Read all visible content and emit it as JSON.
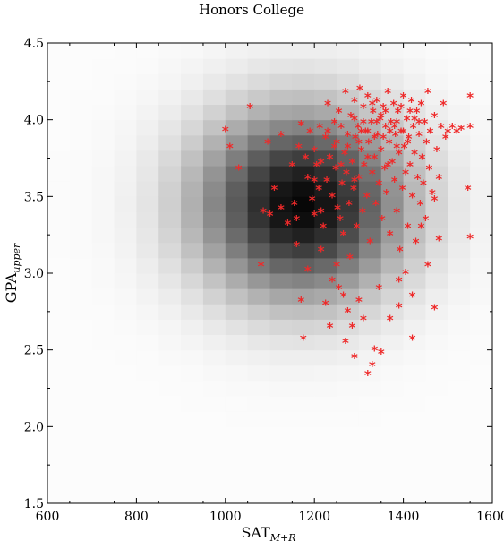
{
  "chart_data": {
    "type": "scatter",
    "title": "Honors College",
    "xlabel": {
      "main": "SAT",
      "sub": "M+R"
    },
    "ylabel": {
      "main": "GPA",
      "sub": "upper"
    },
    "xlim": [
      600,
      1600
    ],
    "ylim": [
      1.5,
      4.5
    ],
    "x_ticks": [
      "600",
      "800",
      "1000",
      "1200",
      "1400",
      "1600"
    ],
    "y_ticks": [
      "1.5",
      "2.0",
      "2.5",
      "3.0",
      "3.5",
      "4.0",
      "4.5"
    ],
    "x_tick_values": [
      600,
      800,
      1000,
      1200,
      1400,
      1600
    ],
    "y_tick_values": [
      1.5,
      2.0,
      2.5,
      3.0,
      3.5,
      4.0,
      4.5
    ],
    "grid": false,
    "legend": "none",
    "marker_color": "#ee2a2a",
    "marker_symbol": "*",
    "background_density": {
      "description": "grayscale 2D density (darker = higher)",
      "x_start": 600,
      "x_step": 50,
      "x_bins": 20,
      "y_start": 1.5,
      "y_step": 0.1,
      "y_bins": 30,
      "center_x": 1170,
      "center_y": 3.45,
      "sigma_x": 160,
      "sigma_y": 0.42
    },
    "points": [
      [
        1055,
        4.08
      ],
      [
        1000,
        3.93
      ],
      [
        1010,
        3.82
      ],
      [
        1030,
        3.68
      ],
      [
        1095,
        3.85
      ],
      [
        1110,
        3.55
      ],
      [
        1125,
        3.9
      ],
      [
        1150,
        3.7
      ],
      [
        1155,
        3.45
      ],
      [
        1160,
        3.35
      ],
      [
        1165,
        3.82
      ],
      [
        1170,
        3.97
      ],
      [
        1180,
        3.75
      ],
      [
        1185,
        3.62
      ],
      [
        1190,
        3.92
      ],
      [
        1195,
        3.48
      ],
      [
        1200,
        3.8
      ],
      [
        1205,
        3.7
      ],
      [
        1210,
        3.55
      ],
      [
        1212,
        3.95
      ],
      [
        1215,
        3.4
      ],
      [
        1220,
        3.3
      ],
      [
        1225,
        3.88
      ],
      [
        1228,
        3.6
      ],
      [
        1230,
        4.1
      ],
      [
        1235,
        3.75
      ],
      [
        1240,
        3.5
      ],
      [
        1245,
        3.98
      ],
      [
        1248,
        3.68
      ],
      [
        1250,
        3.85
      ],
      [
        1252,
        3.42
      ],
      [
        1255,
        4.05
      ],
      [
        1258,
        3.35
      ],
      [
        1260,
        3.95
      ],
      [
        1262,
        3.58
      ],
      [
        1265,
        3.25
      ],
      [
        1268,
        3.78
      ],
      [
        1270,
        4.18
      ],
      [
        1272,
        3.65
      ],
      [
        1275,
        3.9
      ],
      [
        1278,
        3.45
      ],
      [
        1280,
        3.1
      ],
      [
        1282,
        4.02
      ],
      [
        1285,
        3.72
      ],
      [
        1288,
        3.55
      ],
      [
        1290,
        4.12
      ],
      [
        1292,
        3.88
      ],
      [
        1295,
        3.3
      ],
      [
        1298,
        3.95
      ],
      [
        1300,
        3.62
      ],
      [
        1302,
        4.2
      ],
      [
        1305,
        3.8
      ],
      [
        1308,
        3.4
      ],
      [
        1310,
        4.08
      ],
      [
        1312,
        3.7
      ],
      [
        1315,
        3.92
      ],
      [
        1318,
        3.5
      ],
      [
        1320,
        4.15
      ],
      [
        1322,
        3.85
      ],
      [
        1325,
        3.2
      ],
      [
        1328,
        3.98
      ],
      [
        1330,
        3.65
      ],
      [
        1332,
        4.05
      ],
      [
        1335,
        3.75
      ],
      [
        1338,
        3.45
      ],
      [
        1340,
        4.12
      ],
      [
        1342,
        3.9
      ],
      [
        1345,
        3.58
      ],
      [
        1348,
        4.0
      ],
      [
        1350,
        3.8
      ],
      [
        1352,
        3.35
      ],
      [
        1355,
        4.08
      ],
      [
        1358,
        3.68
      ],
      [
        1360,
        3.95
      ],
      [
        1362,
        3.52
      ],
      [
        1365,
        4.18
      ],
      [
        1368,
        3.85
      ],
      [
        1370,
        3.25
      ],
      [
        1372,
        3.98
      ],
      [
        1375,
        3.72
      ],
      [
        1378,
        4.1
      ],
      [
        1380,
        3.6
      ],
      [
        1382,
        3.9
      ],
      [
        1385,
        3.4
      ],
      [
        1388,
        4.05
      ],
      [
        1390,
        3.78
      ],
      [
        1392,
        3.15
      ],
      [
        1395,
        3.92
      ],
      [
        1398,
        3.55
      ],
      [
        1400,
        4.15
      ],
      [
        1402,
        3.82
      ],
      [
        1405,
        3.65
      ],
      [
        1408,
        4.0
      ],
      [
        1410,
        3.3
      ],
      [
        1412,
        3.88
      ],
      [
        1415,
        3.7
      ],
      [
        1418,
        4.12
      ],
      [
        1420,
        3.5
      ],
      [
        1422,
        3.95
      ],
      [
        1425,
        3.78
      ],
      [
        1428,
        3.2
      ],
      [
        1430,
        4.05
      ],
      [
        1432,
        3.62
      ],
      [
        1435,
        3.9
      ],
      [
        1438,
        3.45
      ],
      [
        1440,
        4.1
      ],
      [
        1442,
        3.75
      ],
      [
        1445,
        3.58
      ],
      [
        1448,
        3.98
      ],
      [
        1450,
        3.35
      ],
      [
        1452,
        3.85
      ],
      [
        1455,
        4.18
      ],
      [
        1458,
        3.68
      ],
      [
        1460,
        3.92
      ],
      [
        1465,
        3.52
      ],
      [
        1470,
        4.02
      ],
      [
        1475,
        3.8
      ],
      [
        1480,
        3.62
      ],
      [
        1485,
        3.95
      ],
      [
        1490,
        4.1
      ],
      [
        1495,
        3.88
      ],
      [
        1500,
        3.92
      ],
      [
        1510,
        3.95
      ],
      [
        1520,
        3.92
      ],
      [
        1530,
        3.94
      ],
      [
        1545,
        3.55
      ],
      [
        1550,
        4.15
      ],
      [
        1550,
        3.95
      ],
      [
        1550,
        3.23
      ],
      [
        1480,
        3.22
      ],
      [
        1470,
        3.48
      ],
      [
        1455,
        3.05
      ],
      [
        1440,
        3.3
      ],
      [
        1420,
        2.85
      ],
      [
        1405,
        3.0
      ],
      [
        1390,
        2.95
      ],
      [
        1370,
        2.7
      ],
      [
        1345,
        2.9
      ],
      [
        1335,
        2.5
      ],
      [
        1320,
        2.34
      ],
      [
        1300,
        2.82
      ],
      [
        1285,
        2.65
      ],
      [
        1275,
        2.75
      ],
      [
        1270,
        2.55
      ],
      [
        1265,
        2.85
      ],
      [
        1250,
        3.05
      ],
      [
        1240,
        2.95
      ],
      [
        1225,
        2.8
      ],
      [
        1215,
        3.15
      ],
      [
        1200,
        3.38
      ],
      [
        1185,
        3.02
      ],
      [
        1170,
        2.82
      ],
      [
        1175,
        2.57
      ],
      [
        1160,
        3.18
      ],
      [
        1140,
        3.32
      ],
      [
        1125,
        3.42
      ],
      [
        1100,
        3.38
      ],
      [
        1080,
        3.05
      ],
      [
        1085,
        3.4
      ],
      [
        1235,
        2.65
      ],
      [
        1255,
        2.9
      ],
      [
        1290,
        2.45
      ],
      [
        1310,
        2.7
      ],
      [
        1330,
        2.4
      ],
      [
        1350,
        2.48
      ],
      [
        1390,
        2.78
      ],
      [
        1420,
        2.57
      ],
      [
        1470,
        2.77
      ],
      [
        1260,
        3.7
      ],
      [
        1275,
        3.82
      ],
      [
        1290,
        3.6
      ],
      [
        1305,
        3.92
      ],
      [
        1320,
        3.75
      ],
      [
        1335,
        3.88
      ],
      [
        1350,
        4.02
      ],
      [
        1365,
        3.7
      ],
      [
        1380,
        3.95
      ],
      [
        1395,
        4.08
      ],
      [
        1410,
        3.85
      ],
      [
        1425,
        4.0
      ],
      [
        1245,
        3.82
      ],
      [
        1230,
        3.92
      ],
      [
        1215,
        3.72
      ],
      [
        1200,
        3.6
      ],
      [
        1290,
        4.0
      ],
      [
        1310,
        3.98
      ],
      [
        1330,
        4.1
      ],
      [
        1360,
        4.05
      ],
      [
        1385,
        3.98
      ],
      [
        1400,
        3.92
      ],
      [
        1415,
        4.05
      ],
      [
        1435,
        3.98
      ],
      [
        1300,
        3.85
      ],
      [
        1320,
        3.92
      ],
      [
        1340,
        3.98
      ],
      [
        1355,
        3.88
      ],
      [
        1370,
        3.92
      ],
      [
        1385,
        3.82
      ]
    ]
  }
}
